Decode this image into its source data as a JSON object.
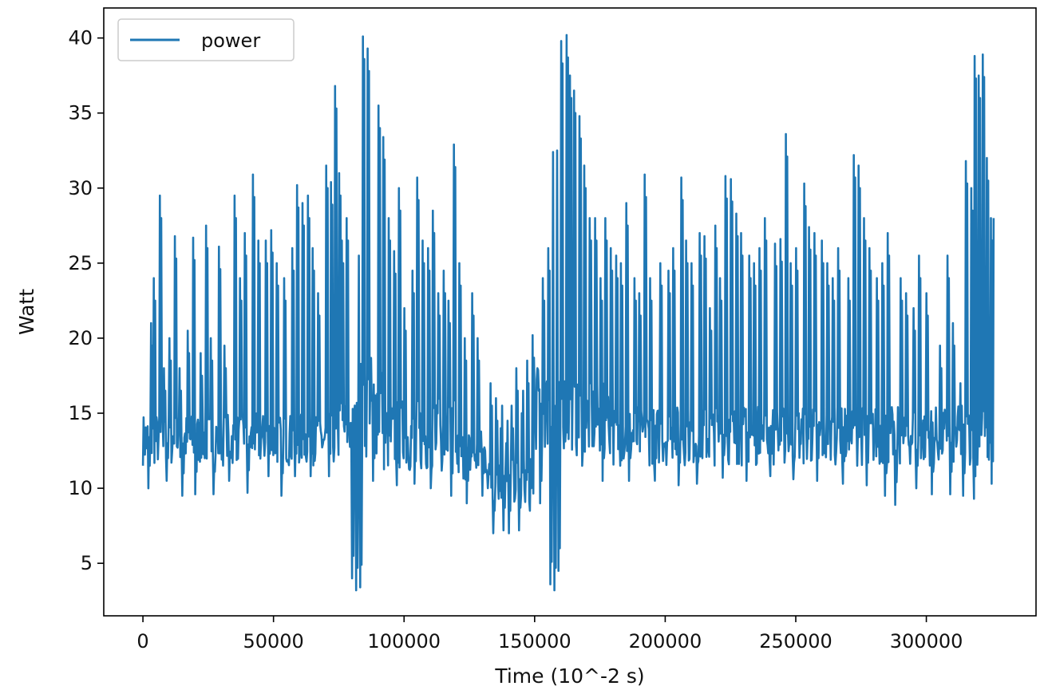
{
  "chart_data": {
    "type": "line",
    "title": "",
    "xlabel": "Time (10^-2 s)",
    "ylabel": "Watt",
    "xlim": [
      -15000,
      342000
    ],
    "ylim": [
      1.5,
      42
    ],
    "x_ticks": [
      0,
      50000,
      100000,
      150000,
      200000,
      250000,
      300000
    ],
    "x_tick_labels": [
      "0",
      "50000",
      "100000",
      "150000",
      "200000",
      "250000",
      "300000"
    ],
    "y_ticks": [
      5,
      10,
      15,
      20,
      25,
      30,
      35,
      40
    ],
    "y_tick_labels": [
      "5",
      "10",
      "15",
      "20",
      "25",
      "30",
      "35",
      "40"
    ],
    "grid": false,
    "legend": {
      "position": "top-left",
      "entries": [
        "power"
      ]
    },
    "series": [
      {
        "name": "power",
        "color": "#1f77b4",
        "x_range": [
          0,
          326000
        ],
        "baseline_segments": [
          {
            "x": [
              0,
              75000
            ],
            "low": 11.5,
            "high": 15
          },
          {
            "x": [
              75000,
              82000
            ],
            "low": 12,
            "high": 16
          },
          {
            "x": [
              82000,
              92000
            ],
            "low": 12,
            "high": 19
          },
          {
            "x": [
              92000,
              120000
            ],
            "low": 11,
            "high": 16
          },
          {
            "x": [
              120000,
              132000
            ],
            "low": 10.5,
            "high": 14
          },
          {
            "x": [
              132000,
              150000
            ],
            "low": 9,
            "high": 12
          },
          {
            "x": [
              150000,
              165000
            ],
            "low": 12.5,
            "high": 18
          },
          {
            "x": [
              165000,
              180000
            ],
            "low": 12,
            "high": 17
          },
          {
            "x": [
              180000,
              326000
            ],
            "low": 11.5,
            "high": 15.5
          }
        ],
        "upward_spikes": [
          [
            3000,
            21
          ],
          [
            4000,
            24
          ],
          [
            6500,
            29.5
          ],
          [
            8000,
            18
          ],
          [
            10000,
            20
          ],
          [
            12000,
            26.8
          ],
          [
            14000,
            18
          ],
          [
            17000,
            20.5
          ],
          [
            19000,
            26.7
          ],
          [
            22000,
            19
          ],
          [
            24000,
            27.5
          ],
          [
            26000,
            20
          ],
          [
            29000,
            26.1
          ],
          [
            31000,
            19.5
          ],
          [
            35000,
            29.5
          ],
          [
            37000,
            24
          ],
          [
            39000,
            27
          ],
          [
            42000,
            30.9
          ],
          [
            44000,
            26.5
          ],
          [
            47000,
            26.5
          ],
          [
            49000,
            27.2
          ],
          [
            51000,
            25
          ],
          [
            54000,
            24
          ],
          [
            57000,
            26
          ],
          [
            59000,
            30.2
          ],
          [
            61000,
            29
          ],
          [
            63000,
            29.5
          ],
          [
            65000,
            26
          ],
          [
            67000,
            23
          ],
          [
            70000,
            31.5
          ],
          [
            72000,
            30.4
          ],
          [
            73500,
            36.8
          ],
          [
            75000,
            31
          ],
          [
            76000,
            26.5
          ],
          [
            78000,
            28
          ],
          [
            80000,
            31.5
          ],
          [
            82000,
            27
          ],
          [
            84000,
            40.1
          ],
          [
            86000,
            39.3
          ],
          [
            88000,
            37
          ],
          [
            90000,
            35.5
          ],
          [
            92000,
            33.4
          ],
          [
            94000,
            28
          ],
          [
            96000,
            25.8
          ],
          [
            98000,
            30
          ],
          [
            100000,
            22
          ],
          [
            103000,
            24.5
          ],
          [
            105000,
            30.7
          ],
          [
            107000,
            26.5
          ],
          [
            109000,
            26
          ],
          [
            111000,
            28.5
          ],
          [
            113000,
            23
          ],
          [
            115000,
            24.5
          ],
          [
            117000,
            22.5
          ],
          [
            119000,
            32.9
          ],
          [
            121000,
            25
          ],
          [
            123000,
            20
          ],
          [
            126000,
            23
          ],
          [
            128000,
            20
          ],
          [
            130000,
            17.5
          ],
          [
            133000,
            17
          ],
          [
            135000,
            16
          ],
          [
            137000,
            14
          ],
          [
            139000,
            13
          ],
          [
            141000,
            15.5
          ],
          [
            143000,
            18
          ],
          [
            145000,
            15
          ],
          [
            147000,
            18.5
          ],
          [
            149000,
            20.2
          ],
          [
            151000,
            18
          ],
          [
            153000,
            24
          ],
          [
            155000,
            26
          ],
          [
            156500,
            33.9
          ],
          [
            158000,
            34
          ],
          [
            160000,
            39.8
          ],
          [
            162000,
            40.2
          ],
          [
            163500,
            37.5
          ],
          [
            165000,
            36.5
          ],
          [
            167000,
            34.8
          ],
          [
            169000,
            31.5
          ],
          [
            171000,
            28
          ],
          [
            173000,
            28
          ],
          [
            175000,
            24
          ],
          [
            177000,
            28
          ],
          [
            179000,
            26
          ],
          [
            181000,
            25.5
          ],
          [
            183000,
            25
          ],
          [
            185000,
            29
          ],
          [
            188000,
            24
          ],
          [
            190000,
            23
          ],
          [
            192000,
            30.9
          ],
          [
            194000,
            24
          ],
          [
            196000,
            23
          ],
          [
            198000,
            25
          ],
          [
            201000,
            24.5
          ],
          [
            203000,
            26
          ],
          [
            206000,
            30.7
          ],
          [
            208000,
            26.5
          ],
          [
            210000,
            25
          ],
          [
            213000,
            27
          ],
          [
            215000,
            26.8
          ],
          [
            217000,
            22
          ],
          [
            219000,
            27.5
          ],
          [
            221000,
            24
          ],
          [
            223000,
            30.8
          ],
          [
            225000,
            30.6
          ],
          [
            227000,
            28.3
          ],
          [
            229000,
            27
          ],
          [
            232000,
            25.5
          ],
          [
            234000,
            25
          ],
          [
            236000,
            26
          ],
          [
            238000,
            28
          ],
          [
            240000,
            22
          ],
          [
            242000,
            26.3
          ],
          [
            244000,
            26.6
          ],
          [
            246000,
            33.6
          ],
          [
            248000,
            25
          ],
          [
            250000,
            26
          ],
          [
            253000,
            30.3
          ],
          [
            255000,
            27.4
          ],
          [
            257000,
            27
          ],
          [
            260000,
            26.5
          ],
          [
            262000,
            25
          ],
          [
            264000,
            24
          ],
          [
            266000,
            26
          ],
          [
            268000,
            22
          ],
          [
            270000,
            24
          ],
          [
            272000,
            32.2
          ],
          [
            274000,
            31.5
          ],
          [
            276000,
            28
          ],
          [
            278000,
            26
          ],
          [
            281000,
            24
          ],
          [
            283000,
            25
          ],
          [
            285000,
            27
          ],
          [
            288000,
            24.5
          ],
          [
            290000,
            24
          ],
          [
            292000,
            23
          ],
          [
            295000,
            22
          ],
          [
            297000,
            25.5
          ],
          [
            300000,
            23
          ],
          [
            302000,
            21.5
          ],
          [
            305000,
            19.5
          ],
          [
            308000,
            25.5
          ],
          [
            310000,
            21
          ],
          [
            313000,
            17
          ],
          [
            315000,
            31.8
          ],
          [
            317000,
            30
          ],
          [
            318500,
            38.8
          ],
          [
            320000,
            37.5
          ],
          [
            321500,
            38.9
          ],
          [
            323000,
            32
          ],
          [
            324500,
            28
          ],
          [
            326000,
            28
          ]
        ],
        "downward_spikes": [
          [
            2000,
            10
          ],
          [
            9000,
            10.5
          ],
          [
            15000,
            9.5
          ],
          [
            20000,
            9.6
          ],
          [
            27000,
            9.6
          ],
          [
            33000,
            10.5
          ],
          [
            40000,
            9.7
          ],
          [
            48000,
            10.8
          ],
          [
            53000,
            9.5
          ],
          [
            58000,
            10.8
          ],
          [
            64000,
            10.8
          ],
          [
            71000,
            10.8
          ],
          [
            80000,
            4
          ],
          [
            81500,
            3.2
          ],
          [
            83000,
            3.4
          ],
          [
            88000,
            10.5
          ],
          [
            97000,
            10.2
          ],
          [
            104000,
            10.3
          ],
          [
            110000,
            10
          ],
          [
            118000,
            9.5
          ],
          [
            124000,
            9
          ],
          [
            130000,
            9.5
          ],
          [
            134000,
            7
          ],
          [
            138000,
            7.2
          ],
          [
            140000,
            7
          ],
          [
            144000,
            7.2
          ],
          [
            148000,
            8.5
          ],
          [
            152000,
            9
          ],
          [
            156000,
            3.6
          ],
          [
            157500,
            3.2
          ],
          [
            159000,
            4.5
          ],
          [
            168000,
            11.5
          ],
          [
            176000,
            10.5
          ],
          [
            186000,
            10.5
          ],
          [
            196000,
            10.5
          ],
          [
            205000,
            10.2
          ],
          [
            212000,
            10.3
          ],
          [
            222000,
            10.7
          ],
          [
            231000,
            10.5
          ],
          [
            240000,
            10.8
          ],
          [
            249000,
            10.6
          ],
          [
            258000,
            10.5
          ],
          [
            268000,
            10.3
          ],
          [
            277000,
            10.2
          ],
          [
            284000,
            9.5
          ],
          [
            288000,
            8.9
          ],
          [
            296000,
            10
          ],
          [
            302000,
            9.6
          ],
          [
            309000,
            9.6
          ],
          [
            314000,
            9.5
          ],
          [
            318000,
            9.3
          ],
          [
            325000,
            10.3
          ]
        ]
      }
    ]
  }
}
